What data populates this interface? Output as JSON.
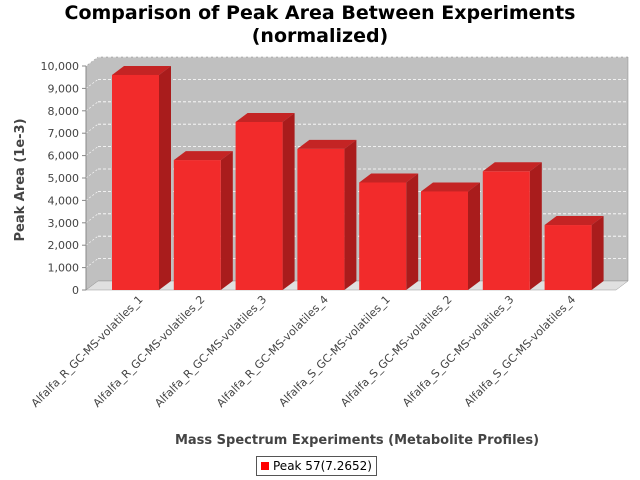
{
  "chart_data": {
    "type": "bar",
    "title_line1": "Comparison of Peak Area Between Experiments",
    "title_line2": "(normalized)",
    "xlabel": "Mass Spectrum Experiments (Metabolite Profiles)",
    "ylabel": "Peak Area (1e-3)",
    "ylim": [
      0,
      10000
    ],
    "yticks": [
      0,
      1000,
      2000,
      3000,
      4000,
      5000,
      6000,
      7000,
      8000,
      9000,
      10000
    ],
    "ytick_labels": [
      "0",
      "1,000",
      "2,000",
      "3,000",
      "4,000",
      "5,000",
      "6,000",
      "7,000",
      "8,000",
      "9,000",
      "10,000"
    ],
    "categories": [
      "Alfalfa_R_GC-MS-volatiles_1",
      "Alfalfa_R_GC-MS-volatiles_2",
      "Alfalfa_R_GC-MS-volatiles_3",
      "Alfalfa_R_GC-MS-volatiles_4",
      "Alfalfa_S_GC-MS-volatiles_1",
      "Alfalfa_S_GC-MS-volatiles_2",
      "Alfalfa_S_GC-MS-volatiles_3",
      "Alfalfa_S_GC-MS-volatiles_4"
    ],
    "series": [
      {
        "name": "Peak 57(7.2652)",
        "values": [
          9600,
          5800,
          7500,
          6300,
          4800,
          4400,
          5300,
          2900
        ]
      }
    ],
    "grid": true,
    "legend_position": "bottom",
    "colors": {
      "bar_front": "#f22b2b",
      "bar_top": "#c42424",
      "bar_side": "#a91c1c",
      "plot_bg": "#c0c0c0",
      "floor": "#e0e0e0",
      "legend_swatch": "#ff0000"
    }
  }
}
